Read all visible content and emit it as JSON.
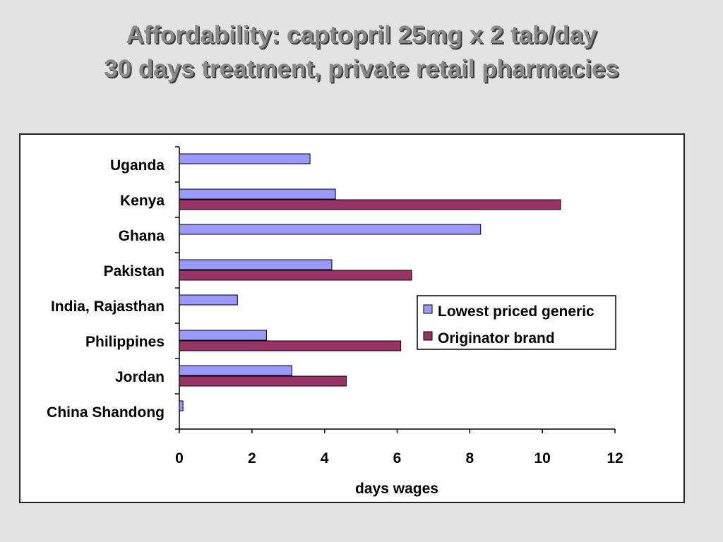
{
  "chart_data": {
    "type": "bar",
    "orientation": "horizontal",
    "title": [
      "Affordability: captopril 25mg x 2 tab/day",
      "30 days treatment, private retail pharmacies"
    ],
    "xlabel": "days wages",
    "ylabel": "",
    "xlim": [
      0,
      12
    ],
    "xticks": [
      "0",
      "2",
      "4",
      "6",
      "8",
      "10",
      "12"
    ],
    "categories": [
      "Uganda",
      "Kenya",
      "Ghana",
      "Pakistan",
      "India, Rajasthan",
      "Philippines",
      "Jordan",
      "China Shandong"
    ],
    "series": [
      {
        "name": "Lowest priced generic",
        "color": "#9999ff",
        "values": [
          3.6,
          4.3,
          8.3,
          4.2,
          1.6,
          2.4,
          3.1,
          0.1
        ]
      },
      {
        "name": "Originator brand",
        "color": "#993366",
        "values": [
          null,
          10.5,
          null,
          6.4,
          null,
          6.1,
          4.6,
          null
        ]
      }
    ],
    "legend_position": "right",
    "grid": false
  }
}
